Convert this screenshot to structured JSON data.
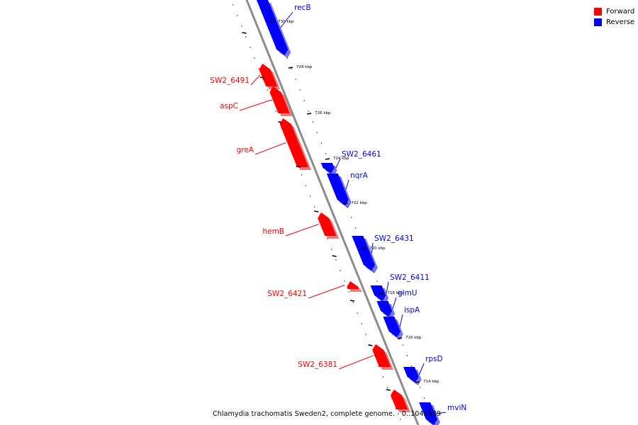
{
  "legend": [
    {
      "label": "Forward",
      "color": "#ff0000"
    },
    {
      "label": "Reverse",
      "color": "#0000ff"
    }
  ],
  "footer": "Chlamydia trachomatis Sweden2, complete genome. - 0..1042839",
  "colors": {
    "forward": "#ff0000",
    "reverse": "#0000ff",
    "backbone": "#8c8c8c"
  },
  "ticks": [
    "730 kbp",
    "728 kbp",
    "726 kbp",
    "724 kbp",
    "722 kbp",
    "720 kbp",
    "718 kbp",
    "716 kbp",
    "714 kbp"
  ],
  "genes": [
    {
      "name": "recB",
      "strand": "reverse"
    },
    {
      "name": "SW2_6491",
      "strand": "forward"
    },
    {
      "name": "aspC",
      "strand": "forward"
    },
    {
      "name": "greA",
      "strand": "forward"
    },
    {
      "name": "SW2_6461",
      "strand": "reverse"
    },
    {
      "name": "nqrA",
      "strand": "reverse"
    },
    {
      "name": "hemB",
      "strand": "forward"
    },
    {
      "name": "SW2_6431",
      "strand": "reverse"
    },
    {
      "name": "SW2_6421",
      "strand": "forward"
    },
    {
      "name": "SW2_6411",
      "strand": "reverse"
    },
    {
      "name": "glmU",
      "strand": "reverse"
    },
    {
      "name": "ispA",
      "strand": "reverse"
    },
    {
      "name": "SW2_6381",
      "strand": "forward"
    },
    {
      "name": "rpsD",
      "strand": "reverse"
    },
    {
      "name": "mviN",
      "strand": "reverse"
    },
    {
      "name": "",
      "strand": "forward"
    }
  ]
}
